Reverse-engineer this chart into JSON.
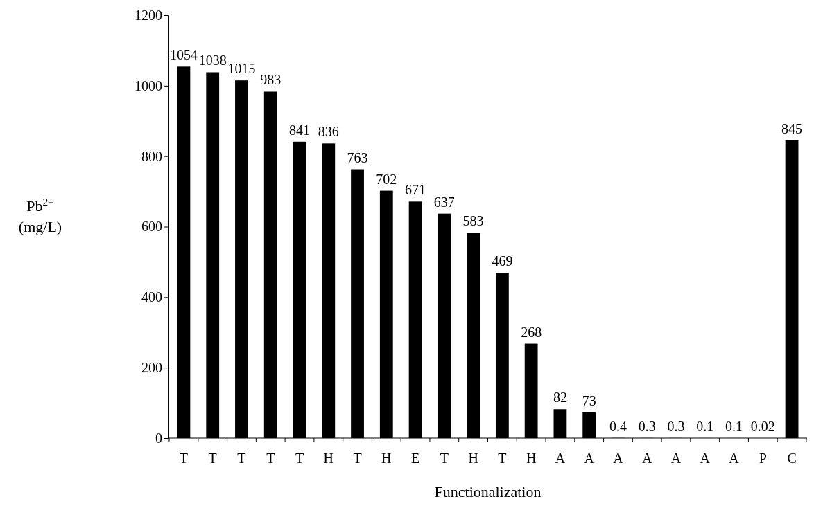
{
  "chart_data": {
    "type": "bar",
    "xlabel": "Functionalization",
    "ylabel": "Pb$^{2+}$ (mg/L)",
    "categories": [
      "T",
      "T",
      "T",
      "T",
      "T",
      "H",
      "T",
      "H",
      "E",
      "T",
      "H",
      "T",
      "H",
      "A",
      "A",
      "A",
      "A",
      "A",
      "A",
      "A",
      "P",
      "C"
    ],
    "values": [
      1054,
      1038,
      1015,
      983,
      841,
      836,
      763,
      702,
      671,
      637,
      583,
      469,
      268,
      82,
      73,
      0.4,
      0.3,
      0.3,
      0.1,
      0.1,
      0.02,
      845
    ],
    "color": "#000000",
    "ylim": [
      0,
      1200
    ],
    "yticks": [
      0,
      200,
      400,
      600,
      800,
      1000,
      1200
    ],
    "data_labels": true,
    "grid": false
  }
}
